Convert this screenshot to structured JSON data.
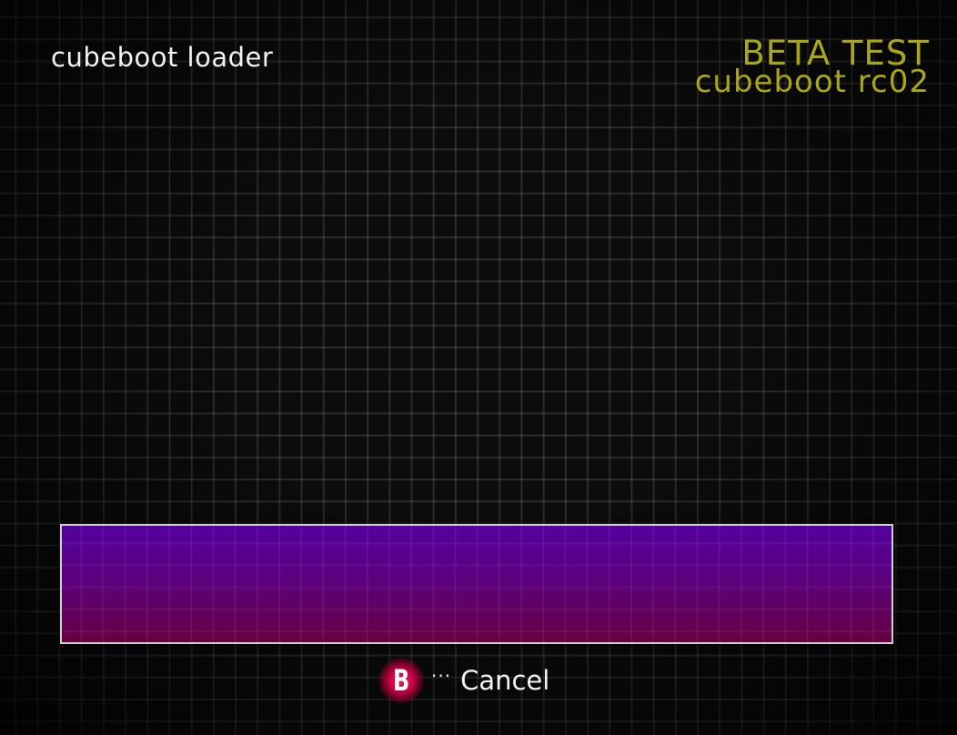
{
  "header": {
    "app_title": "cubeboot loader"
  },
  "badge": {
    "label": "BETA TEST",
    "version": "cubeboot rc02",
    "color": "#a9a61a"
  },
  "message_panel": {
    "text": ""
  },
  "footer": {
    "button_glyph": "B",
    "button_icon": "b-button-icon",
    "separator": "···",
    "action_label": "Cancel"
  }
}
